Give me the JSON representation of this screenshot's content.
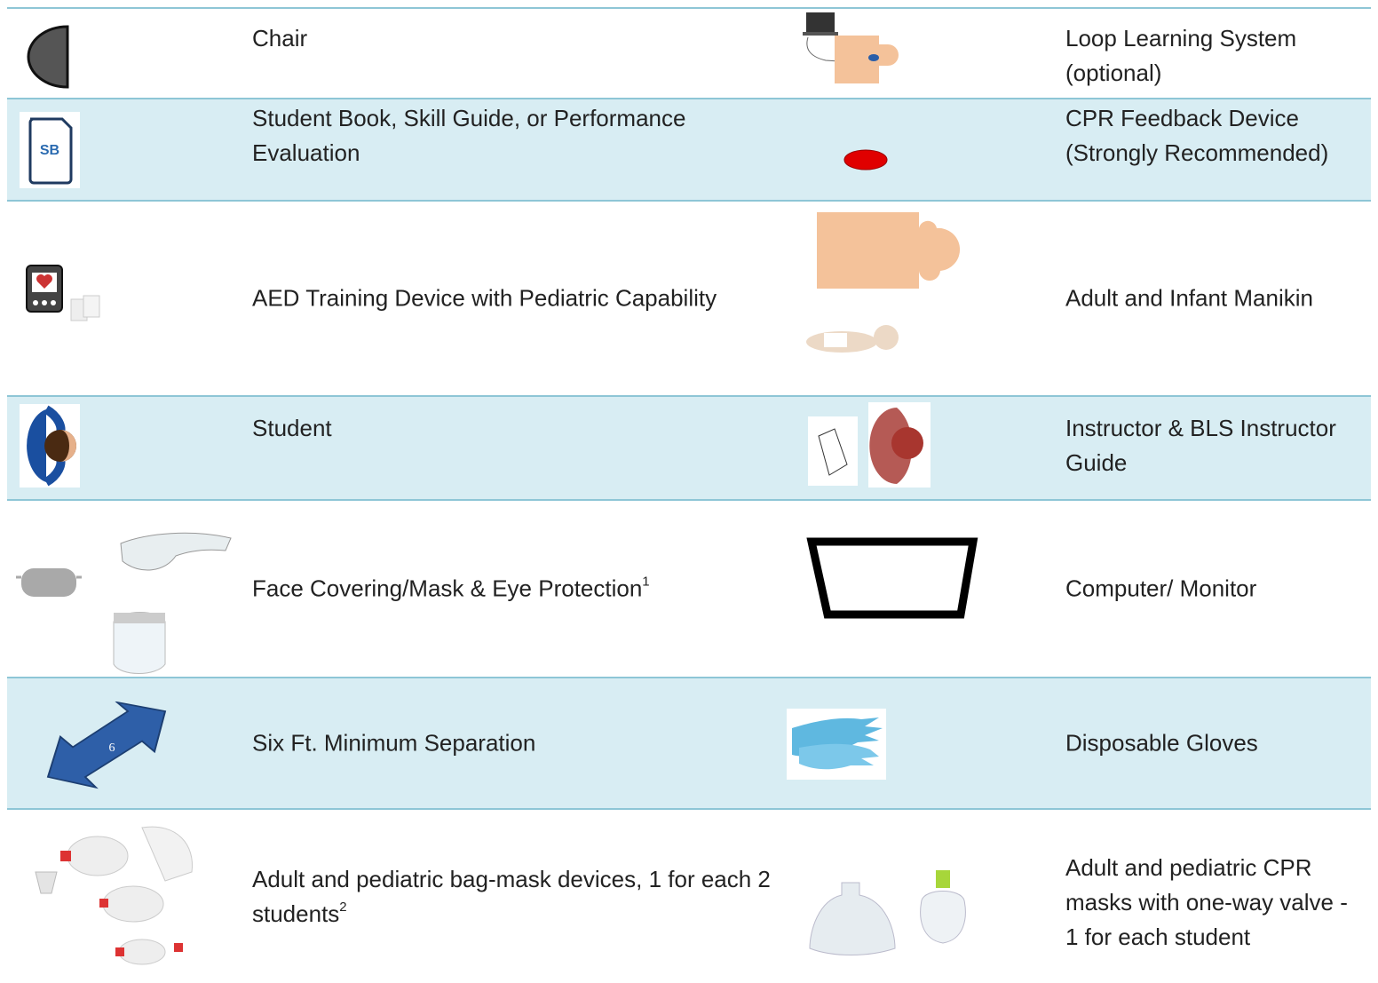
{
  "rows": [
    {
      "left": {
        "text": "Chair"
      },
      "right": {
        "text": "Loop Learning System (optional)"
      }
    },
    {
      "left": {
        "text": "Student Book, Skill Guide, or Performance Evaluation",
        "icon_label": "SB"
      },
      "right": {
        "text": "CPR Feedback Device (Strongly Recommended)"
      }
    },
    {
      "left": {
        "text": "AED Training Device with Pediatric Capability"
      },
      "right": {
        "text": "Adult and Infant Manikin"
      }
    },
    {
      "left": {
        "text": "Student"
      },
      "right": {
        "text": "Instructor & BLS Instructor Guide"
      }
    },
    {
      "left": {
        "text": "Face Covering/Mask & Eye Protection",
        "note": "1"
      },
      "right": {
        "text": "Computer/ Monitor"
      }
    },
    {
      "left": {
        "text": "Six Ft. Minimum Separation",
        "icon_label": "6"
      },
      "right": {
        "text": "Disposable Gloves"
      }
    },
    {
      "left": {
        "text": "Adult and pediatric bag-mask devices, 1 for each 2 students",
        "note": "2"
      },
      "right": {
        "text": "Adult and pediatric CPR masks with one-way valve - 1 for each student"
      }
    }
  ]
}
